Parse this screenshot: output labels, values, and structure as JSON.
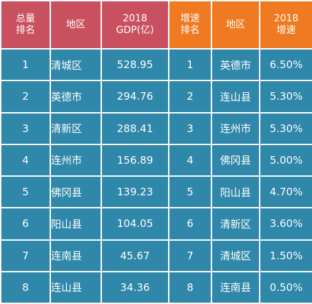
{
  "headers": {
    "total_rank": [
      "总量",
      "排名"
    ],
    "region_left": "地区",
    "gdp": [
      "2018",
      "GDP(亿)"
    ],
    "growth_rank": [
      "增速",
      "排名"
    ],
    "region_right": "地区",
    "growth": [
      "2018",
      "增速"
    ]
  },
  "rows": [
    {
      "total_rank": "1",
      "region_left": "清城区",
      "gdp": "528.95",
      "growth_rank": "1",
      "region_right": "英德市",
      "growth": "6.50%"
    },
    {
      "total_rank": "2",
      "region_left": "英德市",
      "gdp": "294.76",
      "growth_rank": "2",
      "region_right": "连山县",
      "growth": "5.30%"
    },
    {
      "total_rank": "3",
      "region_left": "清新区",
      "gdp": "288.41",
      "growth_rank": "3",
      "region_right": "连州市",
      "growth": "5.30%"
    },
    {
      "total_rank": "4",
      "region_left": "连州市",
      "gdp": "156.89",
      "growth_rank": "4",
      "region_right": "佛冈县",
      "growth": "5.00%"
    },
    {
      "total_rank": "5",
      "region_left": "佛冈县",
      "gdp": "139.23",
      "growth_rank": "5",
      "region_right": "阳山县",
      "growth": "4.70%"
    },
    {
      "total_rank": "6",
      "region_left": "阳山县",
      "gdp": "104.05",
      "growth_rank": "6",
      "region_right": "清新区",
      "growth": "3.60%"
    },
    {
      "total_rank": "7",
      "region_left": "连南县",
      "gdp": "45.67",
      "growth_rank": "7",
      "region_right": "清城区",
      "growth": "1.50%"
    },
    {
      "total_rank": "8",
      "region_left": "连山县",
      "gdp": "34.36",
      "growth_rank": "8",
      "region_right": "连南县",
      "growth": "0.50%"
    }
  ],
  "colors": {
    "header_left": "#c9515f",
    "header_right": "#f07a21",
    "body": "#2f87a9",
    "text": "#ffffff",
    "border": "#ffffff"
  }
}
